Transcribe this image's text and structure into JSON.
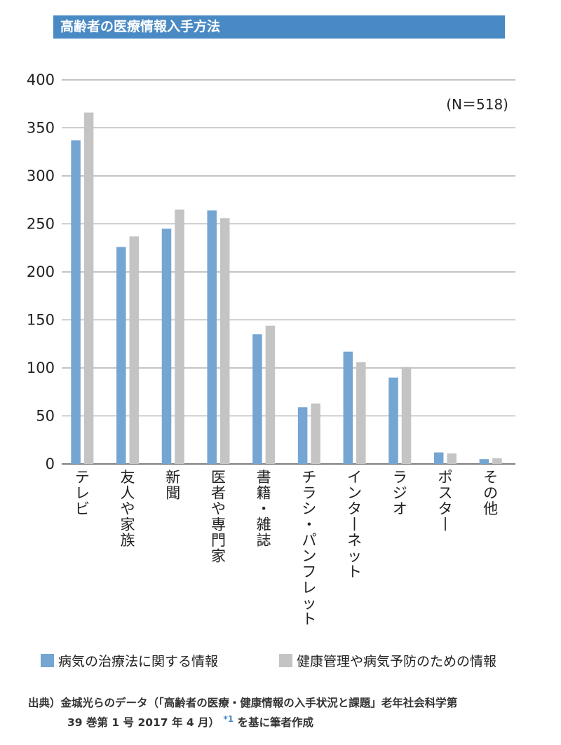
{
  "chart_data": {
    "type": "bar",
    "title": "高齢者の医療情報入手方法",
    "annotation": "(N＝518)",
    "categories": [
      "テレビ",
      "友人や家族",
      "新聞",
      "医者や専門家",
      "書籍・雑誌",
      "チラシ・パンフレット",
      "インターネット",
      "ラジオ",
      "ポスター",
      "その他"
    ],
    "series": [
      {
        "name": "病気の治療法に関する情報",
        "color": "#75a5d2",
        "values": [
          337,
          226,
          245,
          264,
          135,
          59,
          117,
          90,
          12,
          5
        ]
      },
      {
        "name": "健康管理や病気予防のための情報",
        "color": "#c4c4c4",
        "values": [
          366,
          237,
          265,
          256,
          144,
          63,
          106,
          101,
          11,
          6
        ]
      }
    ],
    "yticks": [
      "0",
      "50",
      "100",
      "150",
      "200",
      "250",
      "300",
      "350",
      "400"
    ],
    "ylim": [
      0,
      400
    ],
    "grid": true,
    "legend_position": "bottom",
    "xlabel": "",
    "ylabel": ""
  },
  "source": {
    "line1": "出典）金城光らのデータ（「高齢者の医療・健康情報の入手状況と課題」老年社会科学第",
    "line2": "39 巻第 1 号 2017 年 4 月）",
    "note_mark": "*1",
    "line2_end": "を基に筆者作成"
  }
}
